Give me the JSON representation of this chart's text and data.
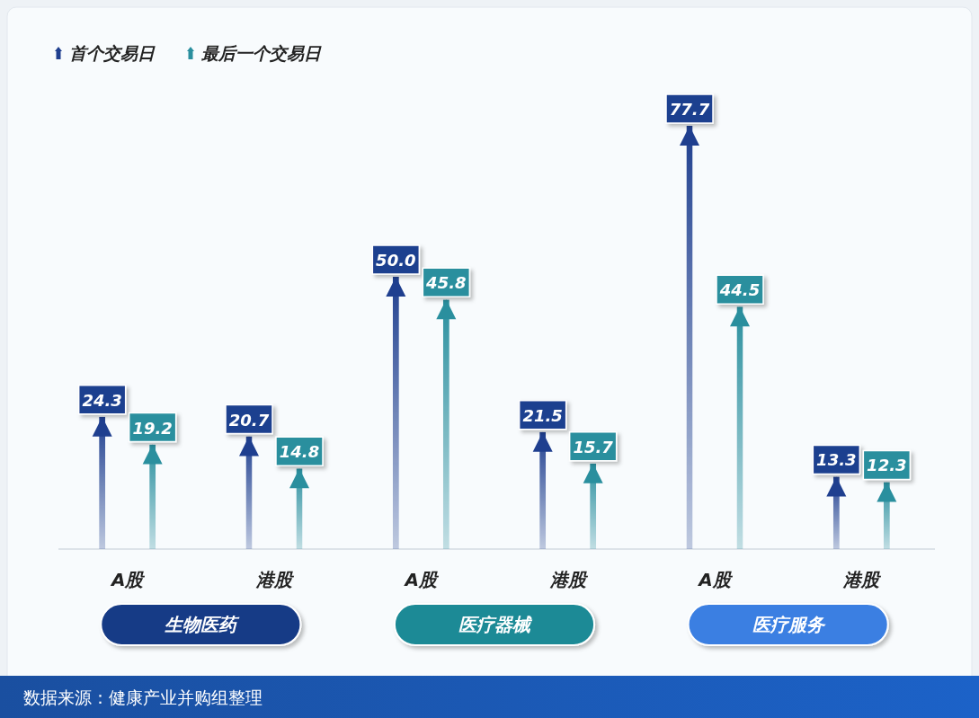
{
  "chart_data": {
    "type": "bar",
    "categories": [
      "A股",
      "港股",
      "A股",
      "港股",
      "A股",
      "港股"
    ],
    "series": [
      {
        "name": "首个交易日",
        "color": "#1f3f8f",
        "values": [
          24.3,
          20.7,
          50.0,
          21.5,
          77.7,
          13.3
        ],
        "value_labels": [
          "24.3",
          "20.7",
          "50.0",
          "21.5",
          "77.7",
          "13.3"
        ]
      },
      {
        "name": "最后一个交易日",
        "color": "#2a8f9e",
        "values": [
          19.2,
          14.8,
          45.8,
          15.7,
          44.5,
          12.3
        ],
        "value_labels": [
          "19.2",
          "14.8",
          "45.8",
          "15.7",
          "44.5",
          "12.3"
        ]
      }
    ],
    "legend": "top left",
    "annotations": [
      "生物医药",
      "医疗器械",
      "医疗服务",
      "数据来源：健康产业并购组整理"
    ]
  }
}
